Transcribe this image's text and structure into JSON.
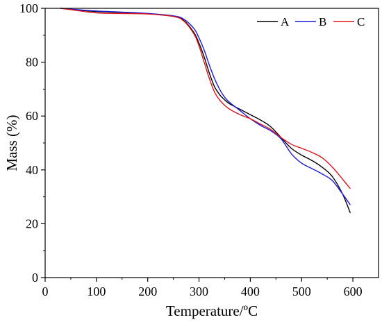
{
  "chart_data": {
    "type": "line",
    "xlabel": "Temperature/ºC",
    "ylabel": "Mass (%)",
    "xlim": [
      0,
      650
    ],
    "ylim": [
      0,
      100
    ],
    "xticks": [
      0,
      100,
      200,
      300,
      400,
      500,
      600
    ],
    "yticks": [
      0,
      20,
      40,
      60,
      80,
      100
    ],
    "legend_position": "top-right",
    "grid": false,
    "series": [
      {
        "name": "A",
        "color": "#000000",
        "x": [
          30,
          50,
          100,
          150,
          200,
          250,
          270,
          290,
          300,
          310,
          320,
          330,
          340,
          350,
          360,
          380,
          400,
          420,
          440,
          460,
          480,
          500,
          520,
          540,
          560,
          580,
          595
        ],
        "y": [
          100,
          99.6,
          98.8,
          98.5,
          98,
          97,
          95.5,
          91,
          87,
          82,
          76,
          71,
          68,
          66,
          64.5,
          62.5,
          60.5,
          58.5,
          56,
          52,
          48,
          45.5,
          43.5,
          41,
          37.5,
          31,
          24
        ]
      },
      {
        "name": "B",
        "color": "#1a1ad6",
        "x": [
          30,
          50,
          100,
          150,
          200,
          250,
          270,
          290,
          300,
          310,
          320,
          330,
          340,
          350,
          360,
          380,
          400,
          420,
          440,
          460,
          480,
          500,
          520,
          540,
          560,
          580,
          595
        ],
        "y": [
          100,
          99.7,
          99,
          98.6,
          98.1,
          97.2,
          96,
          92.5,
          89,
          84.5,
          79,
          74,
          70,
          67,
          65,
          62,
          59,
          56.5,
          54.5,
          51.5,
          46,
          42.5,
          40.5,
          38.5,
          36,
          31,
          27
        ]
      },
      {
        "name": "C",
        "color": "#e0141a",
        "x": [
          30,
          50,
          100,
          150,
          200,
          250,
          270,
          290,
          300,
          310,
          320,
          330,
          340,
          350,
          360,
          380,
          400,
          420,
          440,
          460,
          480,
          500,
          520,
          540,
          560,
          580,
          595
        ],
        "y": [
          100,
          99.5,
          98.3,
          98.1,
          97.9,
          97,
          95.3,
          90.5,
          86,
          80,
          74,
          69,
          66,
          64,
          62.5,
          60.5,
          59,
          57,
          55,
          52,
          49.5,
          48,
          46.5,
          44.5,
          41,
          36.5,
          33
        ]
      }
    ]
  }
}
